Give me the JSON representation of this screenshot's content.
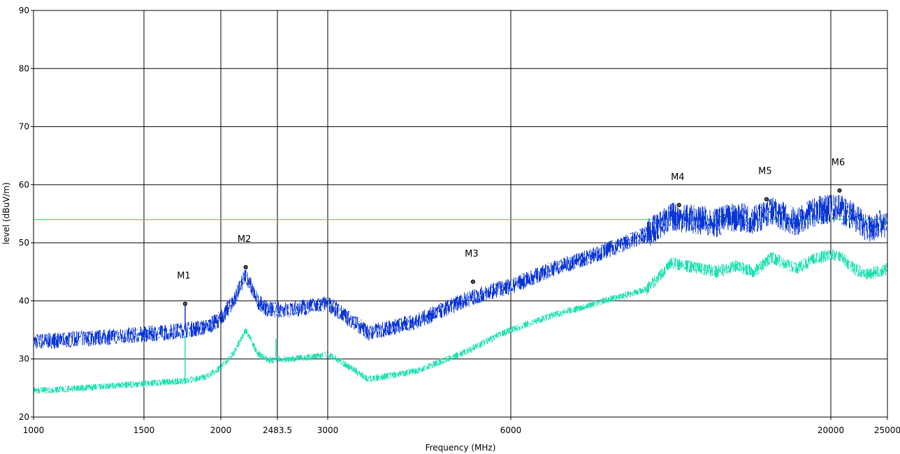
{
  "chart_data": {
    "type": "line",
    "title": "",
    "xlabel": "Frequency (MHz)",
    "ylabel": "level (dBuV/m)",
    "ylim": [
      20,
      90
    ],
    "y_ticks": [
      20,
      30,
      40,
      50,
      60,
      70,
      80,
      90
    ],
    "x_ticks": [
      "1000",
      "1500",
      "2000",
      "2483.5",
      "3000",
      "6000",
      "20000",
      "25000"
    ],
    "x_segments": [
      {
        "from": 1000,
        "to": 3000
      },
      {
        "from": 3000,
        "to": 25000
      }
    ],
    "grid": true,
    "limit_line": {
      "value": 54,
      "color": "#2ee05a"
    },
    "series": [
      {
        "color": "#0a36d6",
        "x": [
          1000,
          1200,
          1400,
          1600,
          1750,
          1900,
          2000,
          2100,
          2200,
          2300,
          2400,
          2600,
          2800,
          3000,
          3500,
          4200,
          5000,
          5700,
          6000,
          7000,
          8500,
          10000,
          11000,
          13000,
          14000,
          15000,
          16000,
          17500,
          19000,
          20500,
          22000,
          23000,
          25000
        ],
        "values": [
          33,
          33.5,
          34,
          34.5,
          35,
          35.5,
          37,
          40,
          44.5,
          40,
          38.5,
          38.5,
          39,
          39.5,
          34.5,
          36.5,
          40,
          42,
          42.5,
          45.5,
          48.5,
          51.5,
          54.5,
          53.5,
          54.5,
          54,
          55.5,
          53.5,
          55.5,
          56,
          54.5,
          52.5,
          53.5
        ]
      },
      {
        "color": "#1de0b0",
        "x": [
          1000,
          1200,
          1400,
          1600,
          1750,
          1900,
          2000,
          2100,
          2200,
          2300,
          2400,
          2600,
          2800,
          3000,
          3500,
          4200,
          5000,
          5700,
          6000,
          7000,
          8500,
          10000,
          11000,
          13000,
          14000,
          15000,
          16000,
          17500,
          19000,
          20500,
          22000,
          23000,
          25000
        ],
        "values": [
          24.5,
          25,
          25.5,
          26,
          26.2,
          27,
          28.5,
          31,
          35,
          31,
          29.8,
          30,
          30.3,
          30.8,
          26.5,
          28,
          31,
          34,
          35,
          37.5,
          40,
          42,
          46.5,
          45,
          46,
          45,
          47.5,
          45.5,
          47.5,
          48,
          45.5,
          44.5,
          45.5
        ]
      }
    ],
    "markers": [
      {
        "label": "M1",
        "x": 1750,
        "y": 39.5
      },
      {
        "label": "M2",
        "x": 2200,
        "y": 45.8
      },
      {
        "label": "M3",
        "x": 5200,
        "y": 43.3
      },
      {
        "label": "M4",
        "x": 11300,
        "y": 56.5
      },
      {
        "label": "M5",
        "x": 15700,
        "y": 57.5
      },
      {
        "label": "M6",
        "x": 20700,
        "y": 59
      }
    ]
  }
}
